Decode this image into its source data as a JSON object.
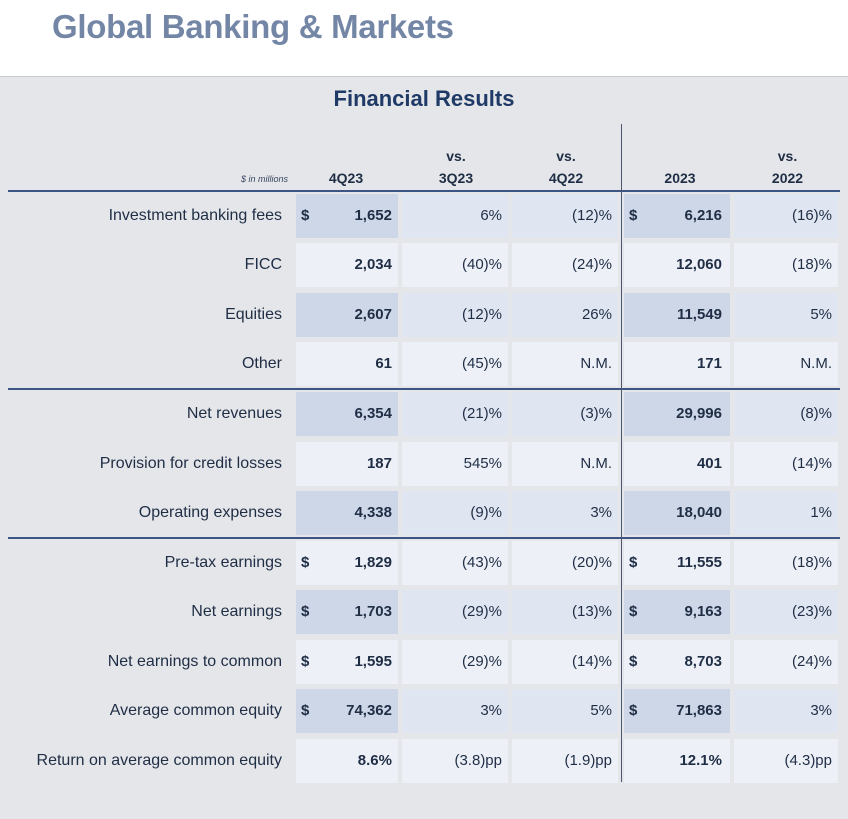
{
  "page_title": "Global Banking & Markets",
  "table_title": "Financial Results",
  "units_label": "$ in millions",
  "columns": {
    "q": "4Q23",
    "vs_q_line1": "vs.",
    "vs_q_line2": "3Q23",
    "vs_py_line1": "vs.",
    "vs_py_line2": "4Q22",
    "year": "2023",
    "vs_year_line1": "vs.",
    "vs_year_line2": "2022"
  },
  "rows": [
    {
      "label": "Investment banking fees",
      "q_dollar": "$",
      "q": "1,652",
      "vs_q": "6%",
      "vs_py": "(12)%",
      "y_dollar": "$",
      "year": "6,216",
      "vs_year": "(16)%"
    },
    {
      "label": "FICC",
      "q_dollar": "",
      "q": "2,034",
      "vs_q": "(40)%",
      "vs_py": "(24)%",
      "y_dollar": "",
      "year": "12,060",
      "vs_year": "(18)%"
    },
    {
      "label": "Equities",
      "q_dollar": "",
      "q": "2,607",
      "vs_q": "(12)%",
      "vs_py": "26%",
      "y_dollar": "",
      "year": "11,549",
      "vs_year": "5%"
    },
    {
      "label": "Other",
      "q_dollar": "",
      "q": "61",
      "vs_q": "(45)%",
      "vs_py": "N.M.",
      "y_dollar": "",
      "year": "171",
      "vs_year": "N.M."
    },
    {
      "label": "Net revenues",
      "q_dollar": "",
      "q": "6,354",
      "vs_q": "(21)%",
      "vs_py": "(3)%",
      "y_dollar": "",
      "year": "29,996",
      "vs_year": "(8)%"
    },
    {
      "label": "Provision for credit losses",
      "q_dollar": "",
      "q": "187",
      "vs_q": "545%",
      "vs_py": "N.M.",
      "y_dollar": "",
      "year": "401",
      "vs_year": "(14)%"
    },
    {
      "label": "Operating expenses",
      "q_dollar": "",
      "q": "4,338",
      "vs_q": "(9)%",
      "vs_py": "3%",
      "y_dollar": "",
      "year": "18,040",
      "vs_year": "1%"
    },
    {
      "label": "Pre-tax earnings",
      "q_dollar": "$",
      "q": "1,829",
      "vs_q": "(43)%",
      "vs_py": "(20)%",
      "y_dollar": "$",
      "year": "11,555",
      "vs_year": "(18)%"
    },
    {
      "label": "Net earnings",
      "q_dollar": "$",
      "q": "1,703",
      "vs_q": "(29)%",
      "vs_py": "(13)%",
      "y_dollar": "$",
      "year": "9,163",
      "vs_year": "(23)%"
    },
    {
      "label": "Net earnings to common",
      "q_dollar": "$",
      "q": "1,595",
      "vs_q": "(29)%",
      "vs_py": "(14)%",
      "y_dollar": "$",
      "year": "8,703",
      "vs_year": "(24)%"
    },
    {
      "label": "Average common equity",
      "q_dollar": "$",
      "q": "74,362",
      "vs_q": "3%",
      "vs_py": "5%",
      "y_dollar": "$",
      "year": "71,863",
      "vs_year": "3%"
    },
    {
      "label": "Return on average common equity",
      "q_dollar": "",
      "q": "8.6%",
      "vs_q": "(3.8)pp",
      "vs_py": "(1.9)pp",
      "y_dollar": "",
      "year": "12.1%",
      "vs_year": "(4.3)pp"
    }
  ],
  "colors": {
    "title": "#7486a6",
    "table_title": "#1f3a66",
    "rule": "#3c5585",
    "band_dark": "#cdd7e8",
    "band_light": "#edf1f7"
  }
}
